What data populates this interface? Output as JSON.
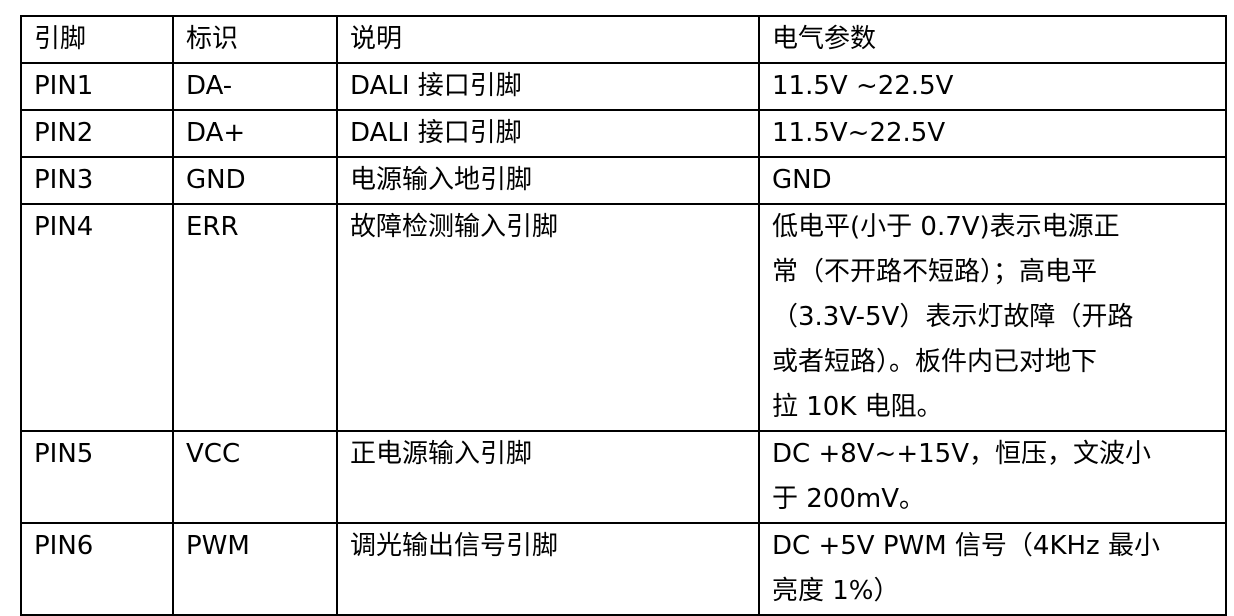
{
  "headers": [
    "引脚",
    "标识",
    "说明",
    "电气参数"
  ],
  "rows": [
    {
      "pin": "PIN1",
      "id": "DA-",
      "desc": "DALI 接口引脚",
      "params": [
        "11.5V ~22.5V"
      ]
    },
    {
      "pin": "PIN2",
      "id": "DA+",
      "desc": "DALI 接口引脚",
      "params": [
        "11.5V~22.5V"
      ]
    },
    {
      "pin": "PIN3",
      "id": "GND",
      "desc": "电源输入地引脚",
      "params": [
        "GND"
      ]
    },
    {
      "pin": "PIN4",
      "id": "ERR",
      "desc": "故障检测输入引脚",
      "params": [
        "低电平(小于 0.7V)表示电源正",
        "常（不开路不短路）；高电平",
        "（3.3V-5V）表示灯故障（开路",
        "或者短路）。板件内已对地下",
        "拉 10K 电阻。"
      ]
    },
    {
      "pin": "PIN5",
      "id": "VCC",
      "desc": "正电源输入引脚",
      "params": [
        "DC +8V~+15V，恒压，文波小",
        "于 200mV。"
      ]
    },
    {
      "pin": "PIN6",
      "id": "PWM",
      "desc": "调光输出信号引脚",
      "params": [
        "DC +5V PWM 信号（4KHz  最小",
        "亮度 1%）"
      ]
    }
  ]
}
